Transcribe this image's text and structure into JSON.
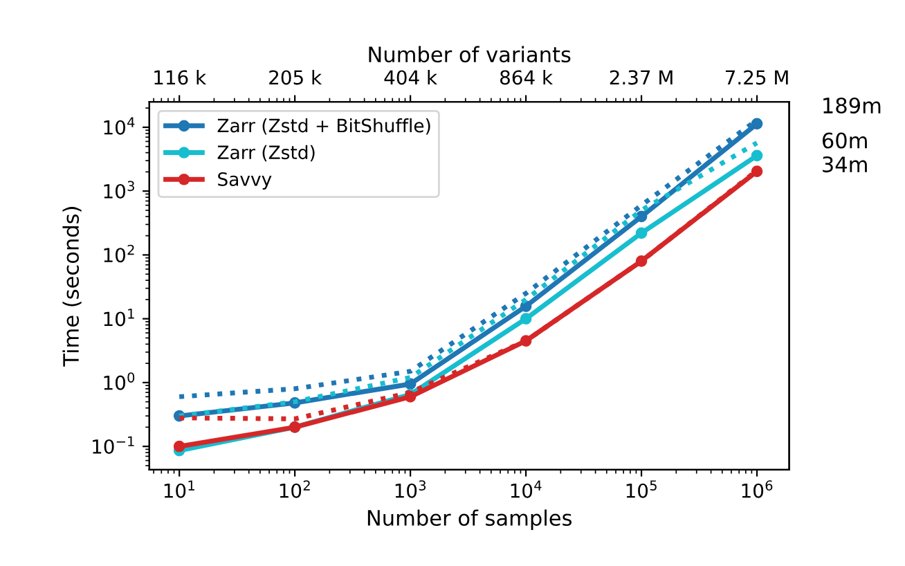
{
  "chart_data": {
    "type": "line",
    "xlabel": "Number of samples",
    "ylabel": "Time (seconds)",
    "x2label": "Number of variants",
    "x": [
      10,
      100,
      1000,
      10000,
      100000,
      1000000
    ],
    "series": [
      {
        "name": "Zarr (Zstd + BitShuffle)",
        "color": "#1f77b4",
        "values": [
          0.3,
          0.48,
          0.95,
          15.7,
          400,
          11340
        ],
        "marker": "circle",
        "line_style": "solid"
      },
      {
        "name": "Zarr (Zstd)",
        "color": "#17becf",
        "values": [
          0.086,
          0.2,
          0.65,
          10,
          220,
          3600
        ],
        "marker": "circle",
        "line_style": "solid"
      },
      {
        "name": "Savvy",
        "color": "#d62728",
        "values": [
          0.1,
          0.2,
          0.6,
          4.5,
          80,
          2040
        ],
        "marker": "circle",
        "line_style": "solid"
      },
      {
        "color": "#1f77b4",
        "values": [
          0.6,
          0.8,
          1.5,
          25,
          600,
          13000
        ],
        "marker": "none",
        "line_style": "dotted"
      },
      {
        "color": "#17becf",
        "values": [
          0.3,
          0.5,
          1.2,
          20,
          500,
          5700
        ],
        "marker": "none",
        "line_style": "dotted"
      },
      {
        "color": "#d62728",
        "values": [
          0.28,
          0.27,
          0.7,
          4.5,
          80,
          2100
        ],
        "marker": "none",
        "line_style": "dotted"
      }
    ],
    "log": "xy",
    "xlim": [
      5.5,
      1900000
    ],
    "ylim": [
      0.043,
      25000
    ],
    "xticks": [
      {
        "value": 10,
        "label": "10$^{1}$"
      },
      {
        "value": 100,
        "label": "10$^{2}$"
      },
      {
        "value": 1000,
        "label": "10$^{3}$"
      },
      {
        "value": 10000,
        "label": "10$^{4}$"
      },
      {
        "value": 100000,
        "label": "10$^{5}$"
      },
      {
        "value": 1000000,
        "label": "10$^{6}$"
      }
    ],
    "yticks": [
      {
        "value": 0.1,
        "label": "10$^{−1}$"
      },
      {
        "value": 1,
        "label": "10$^{0}$"
      },
      {
        "value": 10,
        "label": "10$^{1}$"
      },
      {
        "value": 100,
        "label": "10$^{2}$"
      },
      {
        "value": 1000,
        "label": "10$^{3}$"
      },
      {
        "value": 10000,
        "label": "10$^{4}$"
      }
    ],
    "annotations": [
      "189m",
      "60m",
      "34m",
      {
        "text": "116 k",
        "x": 10
      },
      {
        "text": "205 k",
        "x": 100
      },
      {
        "text": "404 k",
        "x": 1000
      },
      {
        "text": "864 k",
        "x": 10000
      },
      {
        "text": "2.37 M",
        "x": 100000
      },
      {
        "text": "7.25 M",
        "x": 1000000
      }
    ],
    "legend": "top left",
    "grid": false
  }
}
